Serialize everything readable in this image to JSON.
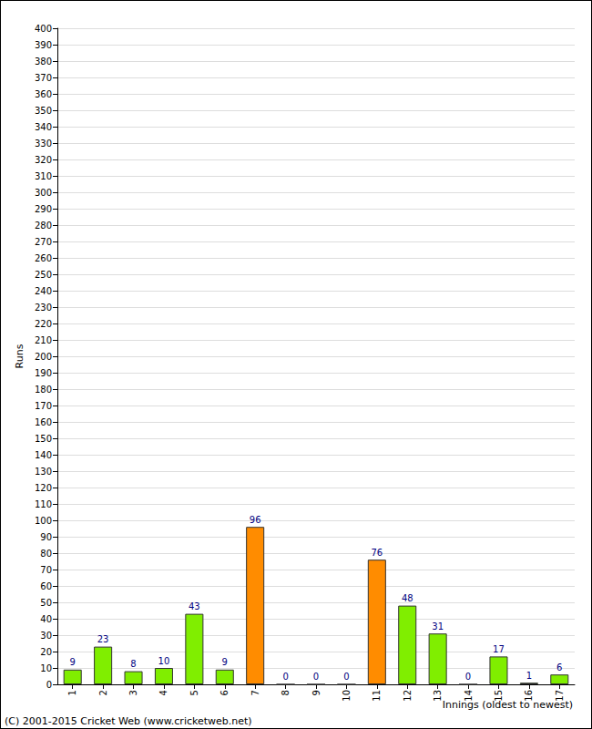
{
  "chart_data": {
    "type": "bar",
    "categories": [
      "1",
      "2",
      "3",
      "4",
      "5",
      "6",
      "7",
      "8",
      "9",
      "10",
      "11",
      "12",
      "13",
      "14",
      "15",
      "16",
      "17"
    ],
    "values": [
      9,
      23,
      8,
      10,
      43,
      9,
      96,
      0,
      0,
      0,
      76,
      48,
      31,
      0,
      17,
      1,
      6
    ],
    "colors": [
      "#80ee00",
      "#80ee00",
      "#80ee00",
      "#80ee00",
      "#80ee00",
      "#80ee00",
      "#ff8c00",
      "#80ee00",
      "#80ee00",
      "#80ee00",
      "#ff8c00",
      "#80ee00",
      "#80ee00",
      "#80ee00",
      "#80ee00",
      "#80ee00",
      "#80ee00"
    ],
    "xlabel": "Innings (oldest to newest)",
    "ylabel": "Runs",
    "annotations": [
      "(C) 2001-2015 Cricket Web (www.cricketweb.net)"
    ],
    "ylim": [
      0,
      400
    ],
    "yticks": [
      0,
      10,
      20,
      30,
      40,
      50,
      60,
      70,
      80,
      90,
      100,
      110,
      120,
      130,
      140,
      150,
      160,
      170,
      180,
      190,
      200,
      210,
      220,
      230,
      240,
      250,
      260,
      270,
      280,
      290,
      300,
      310,
      320,
      330,
      340,
      350,
      360,
      370,
      380,
      390,
      400
    ],
    "grid": true,
    "data_labels": true
  }
}
